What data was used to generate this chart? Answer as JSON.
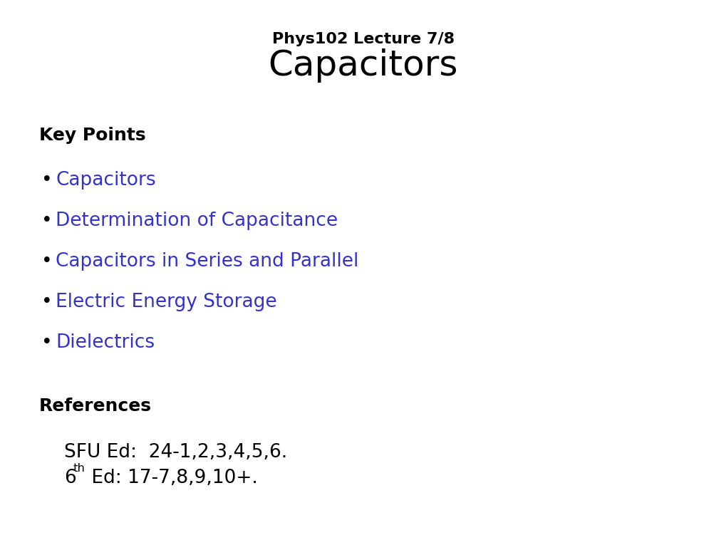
{
  "background_color": "#ffffff",
  "subtitle": "Phys102 Lecture 7/8",
  "title": "Capacitors",
  "subtitle_fontsize": 16,
  "title_fontsize": 36,
  "section1_label": "Key Points",
  "section1_fontsize": 18,
  "bullet_color": "#3333cc",
  "bullet_items": [
    "Capacitors",
    "Determination of Capacitance",
    "Capacitors in Series and Parallel",
    "Electric Energy Storage",
    "Dielectrics"
  ],
  "bullet_fontsize": 19,
  "section2_label": "References",
  "section2_fontsize": 18,
  "ref1": "SFU Ed:  24-1,2,3,4,5,6.",
  "ref2_prefix": "6",
  "ref2_super": "th",
  "ref2_suffix": " Ed: 17-7,8,9,10+.",
  "ref_fontsize": 19,
  "text_color": "#000000",
  "fig_width": 10.2,
  "fig_height": 7.65,
  "dpi": 100
}
